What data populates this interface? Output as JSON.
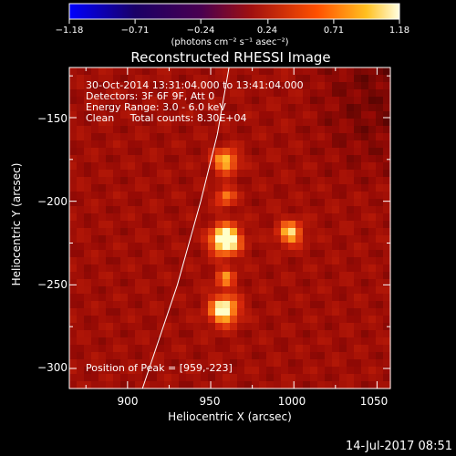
{
  "chart_data": {
    "type": "heatmap",
    "title": "Reconstructed RHESSI Image",
    "xlabel": "Heliocentric X (arcsec)",
    "ylabel": "Heliocentric Y (arcsec)",
    "xlim": [
      865,
      1058
    ],
    "ylim": [
      -312,
      -120
    ],
    "x_ticks": [
      900,
      950,
      1000,
      1050
    ],
    "y_ticks": [
      -150,
      -200,
      -250,
      -300
    ],
    "x_tick_labels": [
      "900",
      "950",
      "1000",
      "1050"
    ],
    "y_tick_labels": [
      "−150",
      "−200",
      "−250",
      "−300"
    ],
    "colorbar": {
      "ticks": [
        -1.18,
        -0.71,
        -0.24,
        0.24,
        0.71,
        1.18
      ],
      "tick_labels": [
        "−1.18",
        "−0.71",
        "−0.24",
        "0.24",
        "0.71",
        "1.18"
      ],
      "unit_label": "(photons cm⁻² s⁻¹ asec⁻²)",
      "range": [
        -1.18,
        1.18
      ]
    },
    "annotations": {
      "time_range": "30-Oct-2014 13:31:04.000 to 13:41:04.000",
      "detectors": "Detectors: 3F 6F 9F, Att 0",
      "energy_range": "Energy Range: 3.0 - 6.0 keV",
      "method": "Clean     Total counts: 8.30E+04",
      "peak": "Position of Peak = [959,-223]"
    },
    "sources": [
      {
        "x": 959,
        "y": -223,
        "peak": 1.18,
        "sigma": 6
      },
      {
        "x": 958,
        "y": -265,
        "peak": 0.95,
        "sigma": 6
      },
      {
        "x": 959,
        "y": -176,
        "peak": 0.75,
        "sigma": 5
      },
      {
        "x": 998,
        "y": -219,
        "peak": 0.75,
        "sigma": 5
      },
      {
        "x": 959,
        "y": -197,
        "peak": 0.55,
        "sigma": 4
      },
      {
        "x": 959,
        "y": -246,
        "peak": 0.55,
        "sigma": 4
      }
    ],
    "limb_curve": [
      [
        909,
        -312
      ],
      [
        930,
        -250
      ],
      [
        944,
        -200
      ],
      [
        954,
        -160
      ],
      [
        961,
        -120
      ]
    ]
  },
  "footer": {
    "timestamp": "14-Jul-2017 08:51"
  }
}
